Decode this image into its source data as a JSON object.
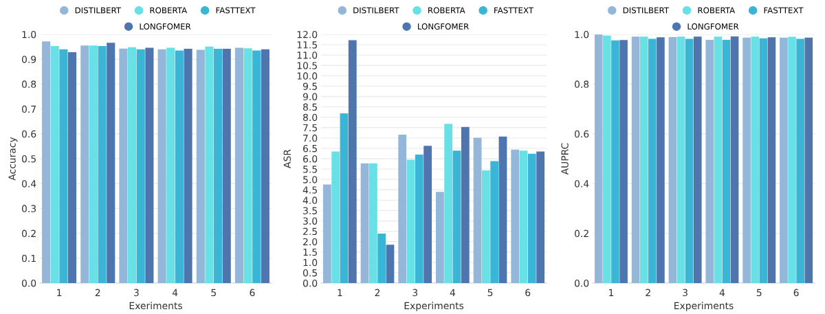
{
  "chart_data": [
    {
      "type": "bar",
      "xlabel": "Exeriments",
      "ylabel": "Accuracy",
      "categories": [
        "1",
        "2",
        "3",
        "4",
        "5",
        "6"
      ],
      "legend": "top",
      "grid": "y",
      "ylim": [
        0,
        1.0
      ],
      "yticks": [
        {
          "value": 0,
          "label": "0.0"
        },
        {
          "value": 0.1,
          "label": "0.1"
        },
        {
          "value": 0.2,
          "label": "0.2"
        },
        {
          "value": 0.3,
          "label": "0.3"
        },
        {
          "value": 0.4,
          "label": "0.4"
        },
        {
          "value": 0.5,
          "label": "0.5"
        },
        {
          "value": 0.6,
          "label": "0.6"
        },
        {
          "value": 0.7,
          "label": "0.7"
        },
        {
          "value": 0.8,
          "label": "0.8"
        },
        {
          "value": 0.9,
          "label": "0.9"
        },
        {
          "value": 1.0,
          "label": "1.0"
        }
      ],
      "series": [
        {
          "name": "DISTILBERT",
          "color": "#94b6d9",
          "values": [
            0.972,
            0.955,
            0.943,
            0.94,
            0.938,
            0.946
          ]
        },
        {
          "name": "ROBERTA",
          "color": "#67e0e6",
          "values": [
            0.953,
            0.955,
            0.948,
            0.946,
            0.951,
            0.944
          ]
        },
        {
          "name": "FASTTEXT",
          "color": "#3ab5d5",
          "values": [
            0.94,
            0.953,
            0.94,
            0.935,
            0.942,
            0.935
          ]
        },
        {
          "name": "LONGFOMER",
          "color": "#4e75ae",
          "values": [
            0.928,
            0.966,
            0.946,
            0.942,
            0.942,
            0.94
          ]
        }
      ]
    },
    {
      "type": "bar",
      "xlabel": "Experiments",
      "ylabel": "ASR",
      "categories": [
        "1",
        "2",
        "3",
        "4",
        "5",
        "6"
      ],
      "legend": "top",
      "grid": "y",
      "ylim": [
        0,
        12.0
      ],
      "yticks": [
        {
          "value": 0,
          "label": "0.0"
        },
        {
          "value": 0.5,
          "label": "0.5"
        },
        {
          "value": 1,
          "label": "1.0"
        },
        {
          "value": 1.5,
          "label": "1.5"
        },
        {
          "value": 2,
          "label": "2.0"
        },
        {
          "value": 2.5,
          "label": "2.5"
        },
        {
          "value": 3,
          "label": "3.0"
        },
        {
          "value": 3.5,
          "label": "3.5"
        },
        {
          "value": 4,
          "label": "4.0"
        },
        {
          "value": 4.5,
          "label": "4.5"
        },
        {
          "value": 5,
          "label": "5.0"
        },
        {
          "value": 5.5,
          "label": "5.5"
        },
        {
          "value": 6,
          "label": "6.0"
        },
        {
          "value": 6.5,
          "label": "6.5"
        },
        {
          "value": 7,
          "label": "7.0"
        },
        {
          "value": 7.5,
          "label": "7.5"
        },
        {
          "value": 8,
          "label": "8.0"
        },
        {
          "value": 8.5,
          "label": "8.5"
        },
        {
          "value": 9,
          "label": "9.0"
        },
        {
          "value": 9.5,
          "label": "9.5"
        },
        {
          "value": 10,
          "label": "10.0"
        },
        {
          "value": 10.5,
          "label": "10.5"
        },
        {
          "value": 11,
          "label": "11.0"
        },
        {
          "value": 11.5,
          "label": "11.5"
        },
        {
          "value": 12,
          "label": "12.0"
        }
      ],
      "series": [
        {
          "name": "DISTILBERT",
          "color": "#94b6d9",
          "values": [
            4.76,
            5.78,
            7.16,
            4.4,
            7.01,
            6.44
          ]
        },
        {
          "name": "ROBERTA",
          "color": "#67e0e6",
          "values": [
            6.35,
            5.78,
            5.95,
            7.68,
            5.44,
            6.39
          ]
        },
        {
          "name": "FASTTEXT",
          "color": "#3ab5d5",
          "values": [
            8.19,
            2.39,
            6.2,
            6.39,
            5.88,
            6.24
          ]
        },
        {
          "name": "LONGFOMER",
          "color": "#4e75ae",
          "values": [
            11.72,
            1.85,
            6.62,
            7.53,
            7.07,
            6.35
          ]
        }
      ]
    },
    {
      "type": "bar",
      "xlabel": "Experiments",
      "ylabel": "AUPRC",
      "categories": [
        "1",
        "2",
        "3",
        "4",
        "5",
        "6"
      ],
      "legend": "top",
      "grid": "y",
      "ylim": [
        0,
        1.0
      ],
      "yticks": [
        {
          "value": 0,
          "label": "0.0"
        },
        {
          "value": 0.2,
          "label": "0.2"
        },
        {
          "value": 0.4,
          "label": "0.4"
        },
        {
          "value": 0.6,
          "label": "0.6"
        },
        {
          "value": 0.8,
          "label": "0.8"
        },
        {
          "value": 1.0,
          "label": "1.0"
        }
      ],
      "series": [
        {
          "name": "DISTILBERT",
          "color": "#94b6d9",
          "values": [
            0.999,
            0.991,
            0.989,
            0.978,
            0.987,
            0.987
          ]
        },
        {
          "name": "ROBERTA",
          "color": "#67e0e6",
          "values": [
            0.995,
            0.991,
            0.991,
            0.991,
            0.991,
            0.99
          ]
        },
        {
          "name": "FASTTEXT",
          "color": "#3ab5d5",
          "values": [
            0.976,
            0.982,
            0.982,
            0.978,
            0.984,
            0.982
          ]
        },
        {
          "name": "LONGFOMER",
          "color": "#4e75ae",
          "values": [
            0.977,
            0.988,
            0.991,
            0.992,
            0.988,
            0.987
          ]
        }
      ]
    }
  ]
}
